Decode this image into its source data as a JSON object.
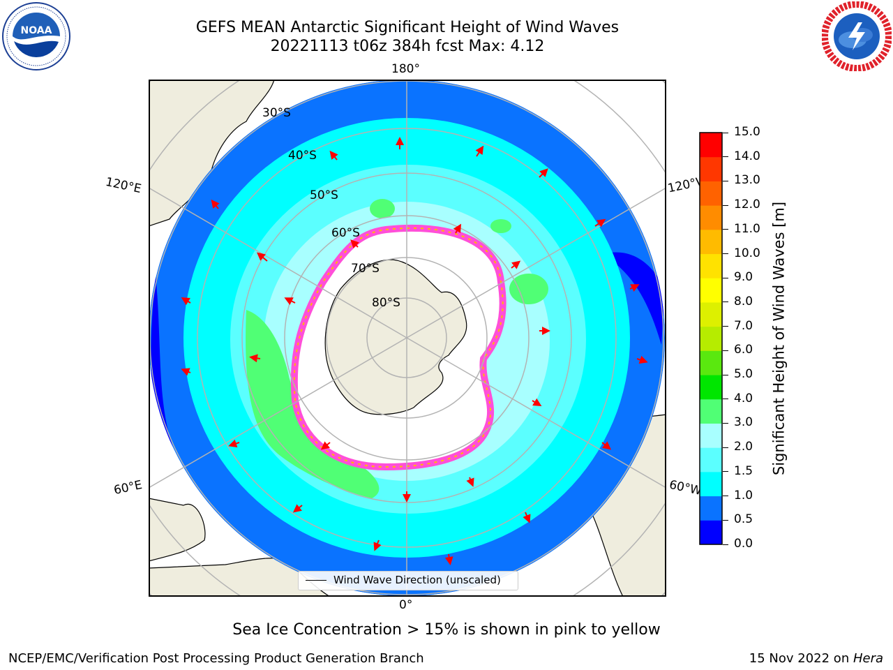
{
  "title": {
    "line1": "GEFS MEAN Antarctic Significant Height of Wind Waves",
    "line2": "20221113 t06z 384h fcst   Max: 4.12"
  },
  "logos": {
    "noaa": {
      "text": "NOAA",
      "ring_text": "NATIONAL OCEANIC AND ATMOSPHERIC ADMINISTRATION · U.S. DEPARTMENT OF COMMERCE"
    },
    "nws": {
      "ring_text": "NATIONAL WEATHER SERVICE"
    }
  },
  "map": {
    "projection": "south-polar-stereographic",
    "longitude_labels": {
      "top": "180°",
      "bottom": "0°",
      "upper_left": "120°E",
      "upper_right": "120°W",
      "lower_left": "60°E",
      "lower_right": "60°W"
    },
    "latitude_labels": [
      "30°S",
      "40°S",
      "50°S",
      "60°S",
      "70°S",
      "80°S"
    ],
    "legend": "Wind Wave Direction (unscaled)",
    "colors": {
      "land": "#efedde",
      "no_data": "#ffffff",
      "arrow": "#ff0000",
      "grid": "#b3b3b3",
      "sea_ice_edge": "#ff4fd8"
    }
  },
  "colorbar": {
    "label": "Significant Height of Wind Waves [m]",
    "ticks": [
      "0.0",
      "0.5",
      "1.0",
      "1.5",
      "2.0",
      "3.0",
      "4.0",
      "5.0",
      "6.0",
      "7.0",
      "8.0",
      "9.0",
      "10.0",
      "11.0",
      "12.0",
      "13.0",
      "14.0",
      "15.0"
    ],
    "colors": [
      "#0000ff",
      "#0a73ff",
      "#00ffff",
      "#5bffff",
      "#a8ffff",
      "#50ff75",
      "#00e600",
      "#5ae80f",
      "#b6ec00",
      "#ddf000",
      "#ffff00",
      "#ffe200",
      "#ffbb00",
      "#ff8c00",
      "#ff6200",
      "#ff3700",
      "#ff0000"
    ]
  },
  "footer": {
    "sea_ice_note": "Sea Ice Concentration > 15% is shown in pink to yellow",
    "credit": "NCEP/EMC/Verification Post Processing Product Generation Branch",
    "date_prefix": "15 Nov 2022 on ",
    "machine": "Hera"
  }
}
